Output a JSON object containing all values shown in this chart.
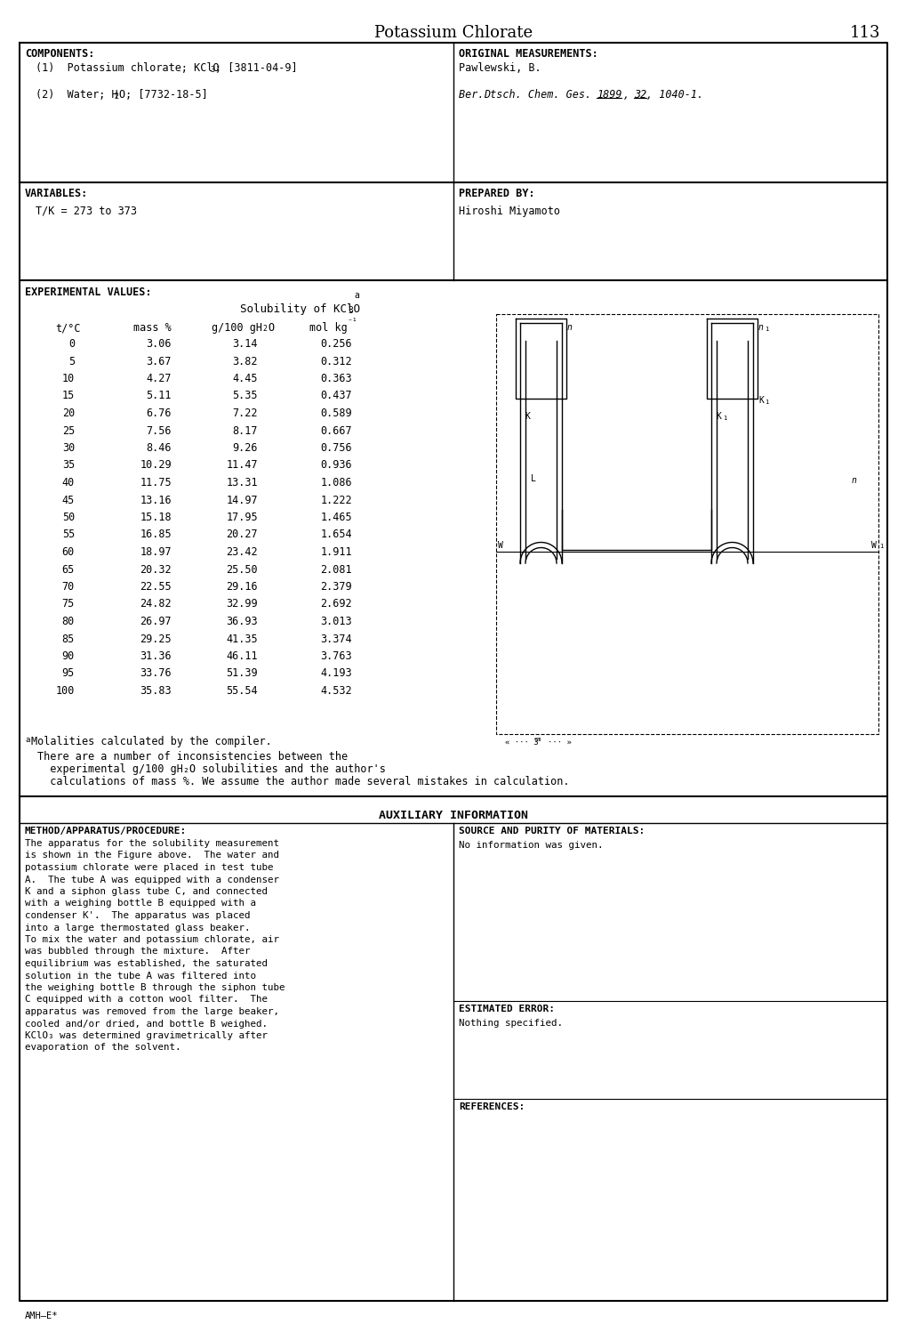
{
  "title": "Potassium Chlorate",
  "page_number": "113",
  "components_label": "COMPONENTS:",
  "original_measurements_label": "ORIGINAL MEASUREMENTS:",
  "author": "Pawlewski, B.",
  "variables_label": "VARIABLES:",
  "variables_value": "T/K = 273 to 373",
  "prepared_by_label": "PREPARED BY:",
  "prepared_by_value": "Hiroshi Miyamoto",
  "experimental_label": "EXPERIMENTAL VALUES:",
  "footnote_a": "Molalities calculated by the compiler.",
  "note_line1": "There are a number of inconsistencies between the",
  "note_line2": "  experimental g/100 gH₂O solubilities and the author's",
  "note_line3": "  calculations of mass %. We assume the author made several mistakes in calculation.",
  "auxiliary_label": "AUXILIARY INFORMATION",
  "method_label": "METHOD/APPARATUS/PROCEDURE:",
  "method_lines": [
    "The apparatus for the solubility measurement",
    "is shown in the Figure above.  The water and",
    "potassium chlorate were placed in test tube",
    "A.  The tube A was equipped with a condenser",
    "K and a siphon glass tube C, and connected",
    "with a weighing bottle B equipped with a",
    "condenser K'.  The apparatus was placed",
    "into a large thermostated glass beaker.",
    "To mix the water and potassium chlorate, air",
    "was bubbled through the mixture.  After",
    "equilibrium was established, the saturated",
    "solution in the tube A was filtered into",
    "the weighing bottle B through the siphon tube",
    "C equipped with a cotton wool filter.  The",
    "apparatus was removed from the large beaker,",
    "cooled and/or dried, and bottle B weighed.",
    "KClO₃ was determined gravimetrically after",
    "evaporation of the solvent."
  ],
  "source_label": "SOURCE AND PURITY OF MATERIALS:",
  "source_text": "No information was given.",
  "estimated_error_label": "ESTIMATED ERROR:",
  "estimated_error_text": "Nothing specified.",
  "references_label": "REFERENCES:",
  "footer": "AMH—E*",
  "data_rows": [
    [
      0,
      3.06,
      3.14,
      0.256
    ],
    [
      5,
      3.67,
      3.82,
      0.312
    ],
    [
      10,
      4.27,
      4.45,
      0.363
    ],
    [
      15,
      5.11,
      5.35,
      0.437
    ],
    [
      20,
      6.76,
      7.22,
      0.589
    ],
    [
      25,
      7.56,
      8.17,
      0.667
    ],
    [
      30,
      8.46,
      9.26,
      0.756
    ],
    [
      35,
      10.29,
      11.47,
      0.936
    ],
    [
      40,
      11.75,
      13.31,
      1.086
    ],
    [
      45,
      13.16,
      14.97,
      1.222
    ],
    [
      50,
      15.18,
      17.95,
      1.465
    ],
    [
      55,
      16.85,
      20.27,
      1.654
    ],
    [
      60,
      18.97,
      23.42,
      1.911
    ],
    [
      65,
      20.32,
      25.5,
      2.081
    ],
    [
      70,
      22.55,
      29.16,
      2.379
    ],
    [
      75,
      24.82,
      32.99,
      2.692
    ],
    [
      80,
      26.97,
      36.93,
      3.013
    ],
    [
      85,
      29.25,
      41.35,
      3.374
    ],
    [
      90,
      31.36,
      46.11,
      3.763
    ],
    [
      95,
      33.76,
      51.39,
      4.193
    ],
    [
      100,
      35.83,
      55.54,
      4.532
    ]
  ]
}
